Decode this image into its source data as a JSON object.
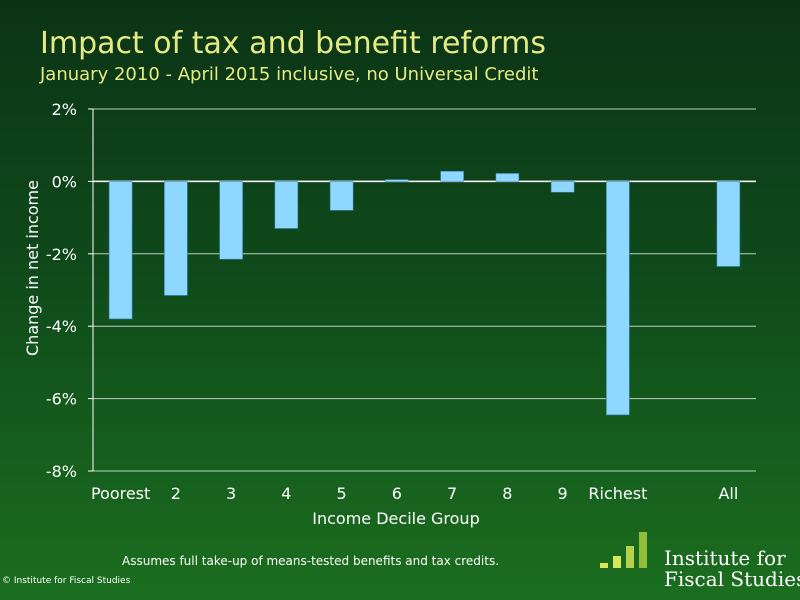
{
  "header": {
    "title": "Impact of tax and benefit reforms",
    "subtitle": "January 2010 - April 2015 inclusive, no Universal Credit"
  },
  "footer": {
    "note": "Assumes full take-up of means-tested benefits and tax credits.",
    "copyright": "© Institute for Fiscal Studies"
  },
  "logo": {
    "line1": "Institute for",
    "line2": "Fiscal Studies"
  },
  "colors": {
    "bar": "#8ed8ff",
    "title": "#e6ea85",
    "text": "#ffffff",
    "logo_light": "#d6e85a",
    "logo_dark": "#8fbf3a"
  },
  "chart_data": {
    "type": "bar",
    "title": "Impact of tax and benefit reforms",
    "subtitle": "January 2010 - April 2015 inclusive, no Universal Credit",
    "xlabel": "Income Decile Group",
    "ylabel": "Change in net income",
    "ylim": [
      -8,
      2
    ],
    "yticks": [
      2,
      0,
      -2,
      -4,
      -6,
      -8
    ],
    "ytick_labels": [
      "2%",
      "0%",
      "-2%",
      "-4%",
      "-6%",
      "-8%"
    ],
    "grid": true,
    "categories": [
      "Poorest",
      "2",
      "3",
      "4",
      "5",
      "6",
      "7",
      "8",
      "9",
      "Richest",
      "All"
    ],
    "values": [
      -3.8,
      -3.15,
      -2.15,
      -1.3,
      -0.8,
      0.05,
      0.28,
      0.22,
      -0.3,
      -6.45,
      -2.35
    ],
    "units": "%"
  }
}
